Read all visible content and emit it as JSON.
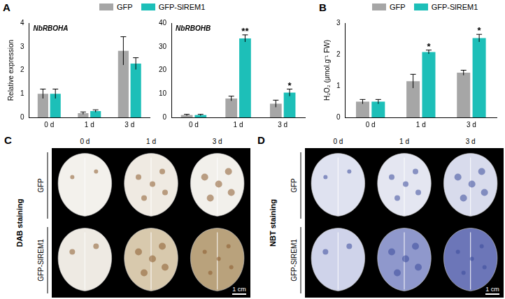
{
  "chart_data": [
    {
      "panel": "A",
      "type": "bar",
      "title": "NbRBOHA",
      "y_label": "Relative expression",
      "categories": [
        "0 d",
        "1 d",
        "3 d"
      ],
      "series": [
        {
          "name": "GFP",
          "color": "#a6a6a6",
          "values": [
            1.0,
            0.18,
            2.82
          ],
          "errors": [
            0.2,
            0.05,
            0.6
          ]
        },
        {
          "name": "GFP-SlREM1",
          "color": "#1dbfb8",
          "values": [
            1.0,
            0.27,
            2.28
          ],
          "errors": [
            0.2,
            0.05,
            0.25
          ]
        }
      ],
      "ylim": [
        0,
        4
      ],
      "yticks": [
        0,
        1,
        2,
        3,
        4
      ],
      "grid": false,
      "legend": "top"
    },
    {
      "type": "bar",
      "title": "NbRBOHB",
      "categories": [
        "0 d",
        "1 d",
        "3 d"
      ],
      "series": [
        {
          "name": "GFP",
          "color": "#a6a6a6",
          "values": [
            1.0,
            8.0,
            5.8
          ],
          "errors": [
            0.3,
            1.0,
            1.5
          ]
        },
        {
          "name": "GFP-SlREM1",
          "color": "#1dbfb8",
          "values": [
            1.0,
            33.5,
            10.5
          ],
          "errors": [
            0.3,
            1.5,
            1.5
          ]
        }
      ],
      "annotations": [
        {
          "category": "1 d",
          "series": "GFP-SlREM1",
          "text": "**"
        },
        {
          "category": "3 d",
          "series": "GFP-SlREM1",
          "text": "*"
        }
      ],
      "ylim": [
        0,
        40
      ],
      "yticks": [
        0,
        10,
        20,
        30,
        40
      ],
      "grid": false
    },
    {
      "panel": "B",
      "type": "bar",
      "y_label": "H₂O₂ (μmol.g⁻¹ FW)",
      "categories": [
        "0 d",
        "1 d",
        "3 d"
      ],
      "series": [
        {
          "name": "GFP",
          "color": "#a6a6a6",
          "values": [
            0.5,
            1.15,
            1.42
          ],
          "errors": [
            0.07,
            0.22,
            0.08
          ]
        },
        {
          "name": "GFP-SlREM1",
          "color": "#1dbfb8",
          "values": [
            0.5,
            2.08,
            2.52
          ],
          "errors": [
            0.07,
            0.06,
            0.12
          ]
        }
      ],
      "annotations": [
        {
          "category": "1 d",
          "series": "GFP-SlREM1",
          "text": "*"
        },
        {
          "category": "3 d",
          "series": "GFP-SlREM1",
          "text": "*"
        }
      ],
      "ylim": [
        0,
        3
      ],
      "yticks": [
        0,
        1,
        2,
        3
      ],
      "grid": false,
      "legend": "top"
    }
  ],
  "image_panels": [
    {
      "panel": "C",
      "staining": "DAB staining",
      "columns": [
        "0 d",
        "1 d",
        "3 d"
      ],
      "rows": [
        "GFP",
        "GFP-SlREM1"
      ],
      "scale_bar": "1 cm"
    },
    {
      "panel": "D",
      "staining": "NBT staining",
      "columns": [
        "0 d",
        "1 d",
        "3 d"
      ],
      "rows": [
        "GFP",
        "GFP-SlREM1"
      ],
      "scale_bar": "1 cm"
    }
  ]
}
